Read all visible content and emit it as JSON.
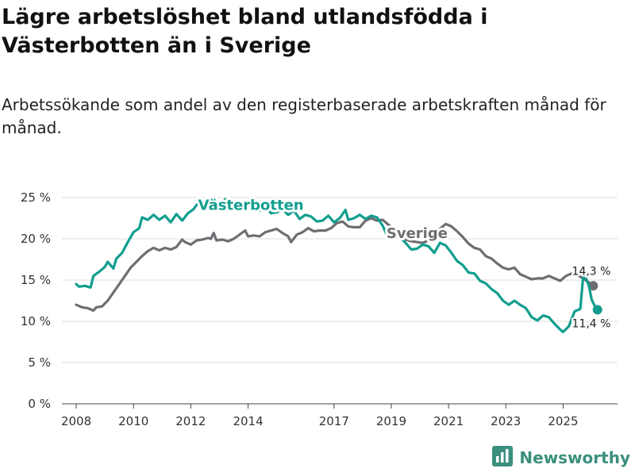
{
  "title": "Lägre arbetslöshet bland utlandsfödda i Västerbotten än i Sverige",
  "subtitle": "Arbetssökande som andel av den registerbaserade arbetskraften månad för månad.",
  "brand": {
    "name": "Newsworthy",
    "icon": "bar-chart-logo-icon",
    "color": "#3a8f7d"
  },
  "colors": {
    "vasterbotten": "#129e8e",
    "sverige": "#6e6d72",
    "grid": "#dddddd",
    "axis": "#444444"
  },
  "chart_data": {
    "type": "line",
    "title": "Lägre arbetslöshet bland utlandsfödda i Västerbotten än i Sverige",
    "xlabel": "",
    "ylabel": "",
    "xlim": [
      2007.5,
      2026.9
    ],
    "ylim": [
      0,
      25
    ],
    "x_ticks": [
      {
        "value": 2008,
        "label": "2008"
      },
      {
        "value": 2010,
        "label": "2010"
      },
      {
        "value": 2012,
        "label": "2012"
      },
      {
        "value": 2014,
        "label": "2014"
      },
      {
        "value": 2017,
        "label": "2017"
      },
      {
        "value": 2019,
        "label": "2019"
      },
      {
        "value": 2021,
        "label": "2021"
      },
      {
        "value": 2023,
        "label": "2023"
      },
      {
        "value": 2025,
        "label": "2025"
      }
    ],
    "y_ticks": [
      {
        "value": 0,
        "label": "0 %"
      },
      {
        "value": 5,
        "label": "5 %"
      },
      {
        "value": 10,
        "label": "10 %"
      },
      {
        "value": 15,
        "label": "15 %"
      },
      {
        "value": 20,
        "label": "20 %"
      },
      {
        "value": 25,
        "label": "25 %"
      }
    ],
    "series": [
      {
        "name": "Sverige",
        "label": "Sverige",
        "label_pos": {
          "x": 2019.9,
          "y": 20.1
        },
        "end_label": "14,3 %",
        "points": [
          [
            2008.0,
            12.0
          ],
          [
            2008.2,
            11.7
          ],
          [
            2008.4,
            11.6
          ],
          [
            2008.6,
            11.3
          ],
          [
            2008.7,
            11.7
          ],
          [
            2008.9,
            11.8
          ],
          [
            2009.1,
            12.5
          ],
          [
            2009.3,
            13.5
          ],
          [
            2009.5,
            14.5
          ],
          [
            2009.7,
            15.5
          ],
          [
            2009.9,
            16.5
          ],
          [
            2010.1,
            17.2
          ],
          [
            2010.3,
            17.9
          ],
          [
            2010.5,
            18.5
          ],
          [
            2010.7,
            18.9
          ],
          [
            2010.9,
            18.6
          ],
          [
            2011.1,
            18.9
          ],
          [
            2011.3,
            18.7
          ],
          [
            2011.5,
            19.0
          ],
          [
            2011.7,
            19.9
          ],
          [
            2011.8,
            19.6
          ],
          [
            2012.0,
            19.3
          ],
          [
            2012.2,
            19.8
          ],
          [
            2012.4,
            19.9
          ],
          [
            2012.6,
            20.1
          ],
          [
            2012.7,
            20.0
          ],
          [
            2012.8,
            20.7
          ],
          [
            2012.9,
            19.8
          ],
          [
            2013.1,
            19.9
          ],
          [
            2013.3,
            19.7
          ],
          [
            2013.5,
            20.0
          ],
          [
            2013.7,
            20.5
          ],
          [
            2013.9,
            21.0
          ],
          [
            2014.0,
            20.3
          ],
          [
            2014.2,
            20.4
          ],
          [
            2014.4,
            20.3
          ],
          [
            2014.6,
            20.8
          ],
          [
            2014.8,
            21.0
          ],
          [
            2015.0,
            21.2
          ],
          [
            2015.2,
            20.7
          ],
          [
            2015.4,
            20.3
          ],
          [
            2015.5,
            19.6
          ],
          [
            2015.7,
            20.5
          ],
          [
            2015.9,
            20.8
          ],
          [
            2016.1,
            21.3
          ],
          [
            2016.3,
            20.9
          ],
          [
            2016.5,
            21.0
          ],
          [
            2016.7,
            21.0
          ],
          [
            2016.9,
            21.3
          ],
          [
            2017.1,
            21.9
          ],
          [
            2017.3,
            22.1
          ],
          [
            2017.5,
            21.5
          ],
          [
            2017.7,
            21.4
          ],
          [
            2017.9,
            21.4
          ],
          [
            2018.1,
            22.2
          ],
          [
            2018.3,
            22.5
          ],
          [
            2018.5,
            22.2
          ],
          [
            2018.7,
            22.3
          ],
          [
            2018.9,
            21.7
          ],
          [
            2019.1,
            21.2
          ],
          [
            2019.3,
            20.4
          ],
          [
            2019.5,
            19.9
          ],
          [
            2019.7,
            19.7
          ],
          [
            2019.9,
            19.6
          ],
          [
            2020.1,
            19.5
          ],
          [
            2020.3,
            19.8
          ],
          [
            2020.5,
            20.2
          ],
          [
            2020.7,
            21.2
          ],
          [
            2020.9,
            21.8
          ],
          [
            2021.1,
            21.5
          ],
          [
            2021.3,
            20.9
          ],
          [
            2021.5,
            20.2
          ],
          [
            2021.7,
            19.4
          ],
          [
            2021.9,
            18.9
          ],
          [
            2022.1,
            18.7
          ],
          [
            2022.3,
            17.9
          ],
          [
            2022.5,
            17.6
          ],
          [
            2022.7,
            17.0
          ],
          [
            2022.9,
            16.5
          ],
          [
            2023.1,
            16.3
          ],
          [
            2023.3,
            16.5
          ],
          [
            2023.5,
            15.7
          ],
          [
            2023.7,
            15.4
          ],
          [
            2023.9,
            15.1
          ],
          [
            2024.1,
            15.2
          ],
          [
            2024.3,
            15.2
          ],
          [
            2024.5,
            15.5
          ],
          [
            2024.7,
            15.2
          ],
          [
            2024.9,
            14.9
          ],
          [
            2025.1,
            15.5
          ],
          [
            2025.3,
            15.8
          ],
          [
            2025.5,
            15.6
          ],
          [
            2025.7,
            15.2
          ],
          [
            2025.9,
            14.7
          ],
          [
            2026.05,
            14.3
          ]
        ]
      },
      {
        "name": "Västerbotten",
        "label": "Västerbotten",
        "label_pos": {
          "x": 2014.1,
          "y": 23.5
        },
        "end_label": "11,4 %",
        "points": [
          [
            2008.0,
            14.5
          ],
          [
            2008.1,
            14.2
          ],
          [
            2008.3,
            14.3
          ],
          [
            2008.5,
            14.1
          ],
          [
            2008.6,
            15.5
          ],
          [
            2008.8,
            16.0
          ],
          [
            2009.0,
            16.6
          ],
          [
            2009.1,
            17.2
          ],
          [
            2009.3,
            16.4
          ],
          [
            2009.4,
            17.6
          ],
          [
            2009.6,
            18.3
          ],
          [
            2009.8,
            19.6
          ],
          [
            2010.0,
            20.8
          ],
          [
            2010.2,
            21.3
          ],
          [
            2010.3,
            22.6
          ],
          [
            2010.5,
            22.3
          ],
          [
            2010.7,
            22.9
          ],
          [
            2010.9,
            22.3
          ],
          [
            2011.1,
            22.8
          ],
          [
            2011.3,
            22.0
          ],
          [
            2011.5,
            23.0
          ],
          [
            2011.7,
            22.2
          ],
          [
            2011.9,
            23.1
          ],
          [
            2012.1,
            23.6
          ],
          [
            2012.2,
            24.1
          ],
          [
            2012.4,
            24.6
          ],
          [
            2012.6,
            23.6
          ],
          [
            2012.8,
            24.4
          ],
          [
            2013.0,
            24.0
          ],
          [
            2013.2,
            24.8
          ],
          [
            2013.4,
            24.3
          ],
          [
            2013.6,
            24.6
          ],
          [
            2013.8,
            24.0
          ],
          [
            2014.0,
            24.5
          ],
          [
            2014.2,
            24.3
          ],
          [
            2014.4,
            23.4
          ],
          [
            2014.6,
            24.0
          ],
          [
            2014.8,
            23.1
          ],
          [
            2015.0,
            23.2
          ],
          [
            2015.2,
            23.6
          ],
          [
            2015.4,
            22.9
          ],
          [
            2015.6,
            23.4
          ],
          [
            2015.8,
            22.4
          ],
          [
            2016.0,
            22.9
          ],
          [
            2016.2,
            22.7
          ],
          [
            2016.4,
            22.1
          ],
          [
            2016.6,
            22.2
          ],
          [
            2016.8,
            22.8
          ],
          [
            2017.0,
            22.0
          ],
          [
            2017.2,
            22.5
          ],
          [
            2017.4,
            23.5
          ],
          [
            2017.5,
            22.3
          ],
          [
            2017.7,
            22.5
          ],
          [
            2017.9,
            22.9
          ],
          [
            2018.1,
            22.4
          ],
          [
            2018.3,
            22.8
          ],
          [
            2018.5,
            22.6
          ],
          [
            2018.7,
            21.6
          ],
          [
            2018.9,
            20.1
          ],
          [
            2019.1,
            20.8
          ],
          [
            2019.3,
            20.2
          ],
          [
            2019.5,
            19.5
          ],
          [
            2019.7,
            18.7
          ],
          [
            2019.9,
            18.8
          ],
          [
            2020.1,
            19.3
          ],
          [
            2020.3,
            19.1
          ],
          [
            2020.5,
            18.3
          ],
          [
            2020.7,
            19.5
          ],
          [
            2020.9,
            19.2
          ],
          [
            2021.1,
            18.3
          ],
          [
            2021.3,
            17.3
          ],
          [
            2021.5,
            16.8
          ],
          [
            2021.7,
            15.9
          ],
          [
            2021.9,
            15.8
          ],
          [
            2022.1,
            14.9
          ],
          [
            2022.3,
            14.6
          ],
          [
            2022.5,
            13.9
          ],
          [
            2022.7,
            13.4
          ],
          [
            2022.9,
            12.5
          ],
          [
            2023.1,
            12.0
          ],
          [
            2023.3,
            12.5
          ],
          [
            2023.5,
            12.0
          ],
          [
            2023.7,
            11.6
          ],
          [
            2023.9,
            10.5
          ],
          [
            2024.1,
            10.1
          ],
          [
            2024.3,
            10.7
          ],
          [
            2024.5,
            10.5
          ],
          [
            2024.7,
            9.7
          ],
          [
            2024.9,
            9.0
          ],
          [
            2025.0,
            8.7
          ],
          [
            2025.2,
            9.4
          ],
          [
            2025.4,
            11.2
          ],
          [
            2025.6,
            11.5
          ],
          [
            2025.7,
            15.4
          ],
          [
            2025.8,
            15.2
          ],
          [
            2025.9,
            14.3
          ],
          [
            2026.0,
            12.6
          ],
          [
            2026.1,
            11.9
          ],
          [
            2026.2,
            11.4
          ]
        ]
      }
    ]
  }
}
